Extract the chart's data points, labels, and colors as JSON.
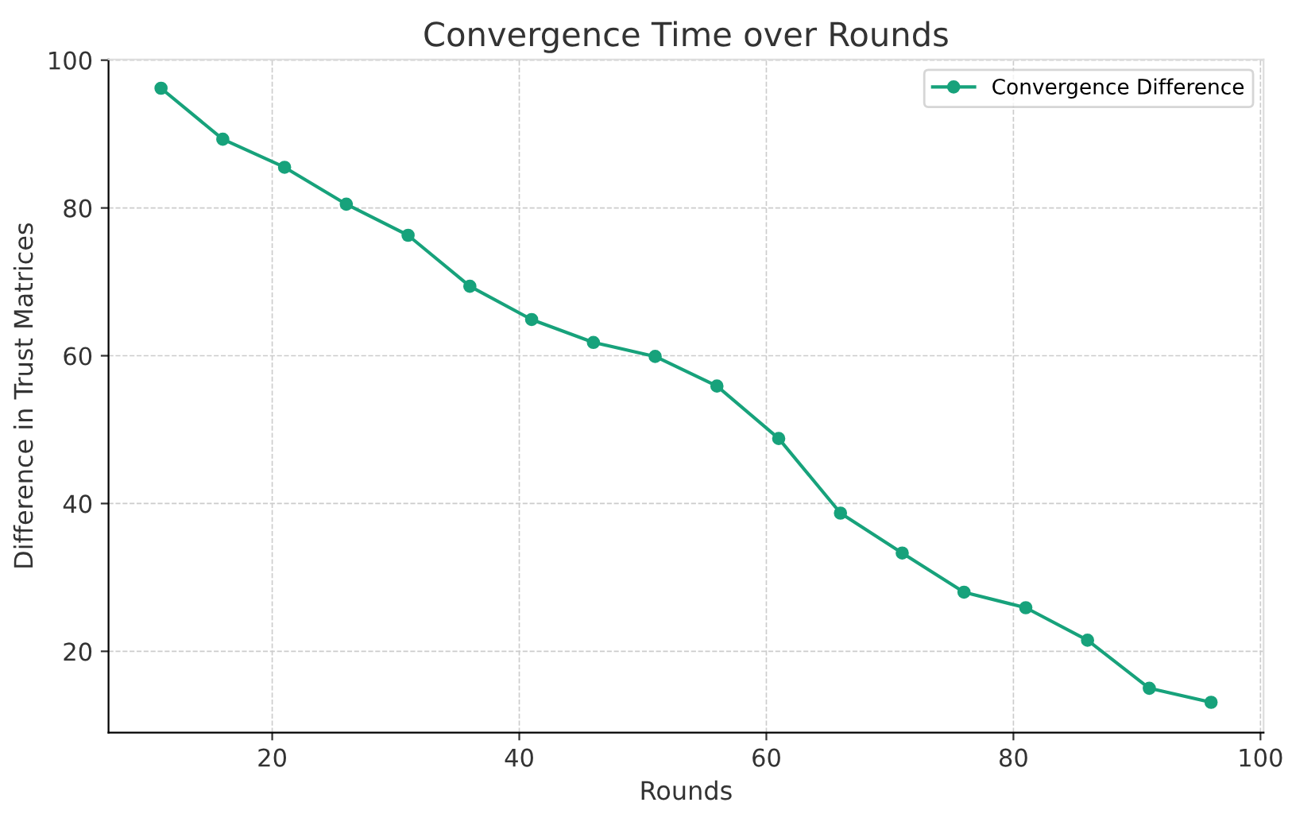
{
  "chart_data": {
    "type": "line",
    "title": "Convergence Time over Rounds",
    "xlabel": "Rounds",
    "ylabel": "Difference in Trust Matrices",
    "x": [
      11,
      16,
      21,
      26,
      31,
      36,
      41,
      46,
      51,
      56,
      61,
      66,
      71,
      76,
      81,
      86,
      91,
      96
    ],
    "series": [
      {
        "name": "Convergence Difference",
        "color": "#17a27b",
        "values": [
          96.2,
          89.3,
          85.5,
          80.5,
          76.3,
          69.4,
          64.9,
          61.8,
          59.9,
          55.9,
          48.8,
          38.7,
          33.3,
          28.0,
          25.9,
          21.5,
          15.0,
          13.1
        ]
      }
    ],
    "xlim": [
      6.75,
      100.25
    ],
    "ylim": [
      9,
      100.1
    ],
    "xticks": [
      20,
      40,
      60,
      80,
      100
    ],
    "yticks": [
      20,
      40,
      60,
      80,
      100
    ],
    "grid": true,
    "legend": "top right",
    "marker": "circle",
    "line_style": "solid"
  }
}
